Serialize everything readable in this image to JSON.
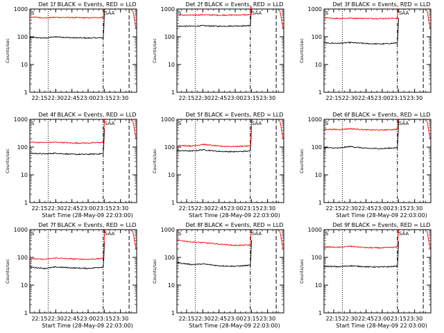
{
  "chart_data": [
    {
      "type": "line",
      "title": "Det 1f BLACK = Events, RED = LLD",
      "xlabel": "",
      "ylabel": "Counts/sec",
      "yscale": "log",
      "ylim": [
        1,
        1000
      ],
      "x_ticks": [
        "22:15",
        "22:30",
        "22:45",
        "23:00",
        "23:15",
        "23:30"
      ],
      "yticks": [
        "1",
        "10",
        "100",
        "1000"
      ],
      "markers": {
        "S": "23:14",
        "SAA": "23:20"
      },
      "series": [
        {
          "color": "#000000",
          "points": [
            [
              "22:06",
              95
            ],
            [
              "22:20",
              90
            ],
            [
              "22:30",
              100
            ],
            [
              "22:45",
              92
            ],
            [
              "23:00",
              90
            ],
            [
              "23:14",
              92
            ]
          ]
        },
        {
          "color": "#ff0000",
          "points": [
            [
              "22:06",
              520
            ],
            [
              "22:20",
              480
            ],
            [
              "22:30",
              500
            ],
            [
              "22:45",
              490
            ],
            [
              "23:00",
              480
            ],
            [
              "23:14",
              500
            ]
          ]
        }
      ]
    },
    {
      "type": "line",
      "title": "Det 2f BLACK = Events, RED = LLD",
      "xlabel": "",
      "ylabel": "Counts/sec",
      "yscale": "log",
      "ylim": [
        1,
        1000
      ],
      "x_ticks": [
        "22:15",
        "22:30",
        "22:45",
        "23:00",
        "23:15",
        "23:30"
      ],
      "yticks": [
        "1",
        "10",
        "100",
        "1000"
      ],
      "markers": {
        "S": "23:14",
        "SAA": "23:20"
      },
      "series": [
        {
          "color": "#000000",
          "points": [
            [
              "22:06",
              240
            ],
            [
              "22:20",
              240
            ],
            [
              "22:30",
              250
            ],
            [
              "22:45",
              240
            ],
            [
              "23:00",
              245
            ],
            [
              "23:14",
              250
            ]
          ]
        },
        {
          "color": "#ff0000",
          "points": [
            [
              "22:06",
              600
            ],
            [
              "22:20",
              600
            ],
            [
              "22:30",
              620
            ],
            [
              "22:45",
              600
            ],
            [
              "23:00",
              610
            ],
            [
              "23:14",
              620
            ]
          ]
        }
      ]
    },
    {
      "type": "line",
      "title": "Det 3f BLACK = Events, RED = LLD",
      "xlabel": "",
      "ylabel": "Counts/sec",
      "yscale": "log",
      "ylim": [
        1,
        1000
      ],
      "x_ticks": [
        "22:15",
        "22:30",
        "22:45",
        "23:00",
        "23:15",
        "23:30"
      ],
      "yticks": [
        "1",
        "10",
        "100",
        "1000"
      ],
      "markers": {
        "S": "23:14",
        "SAA": "23:20"
      },
      "series": [
        {
          "color": "#000000",
          "points": [
            [
              "22:06",
              60
            ],
            [
              "22:20",
              58
            ],
            [
              "22:30",
              62
            ],
            [
              "22:45",
              57
            ],
            [
              "23:00",
              55
            ],
            [
              "23:14",
              60
            ]
          ]
        },
        {
          "color": "#ff0000",
          "points": [
            [
              "22:06",
              470
            ],
            [
              "22:20",
              460
            ],
            [
              "22:30",
              470
            ],
            [
              "22:45",
              460
            ],
            [
              "23:00",
              455
            ],
            [
              "23:14",
              470
            ]
          ]
        }
      ]
    },
    {
      "type": "line",
      "title": "Det 4f BLACK = Events, RED = LLD",
      "xlabel": "Start Time (28-May-09 22:03:00)",
      "ylabel": "Counts/sec",
      "yscale": "log",
      "ylim": [
        1,
        1000
      ],
      "x_ticks": [
        "22:15",
        "22:30",
        "22:45",
        "23:00",
        "23:15",
        "23:30"
      ],
      "yticks": [
        "1",
        "10",
        "100",
        "1000"
      ],
      "markers": {
        "S": "23:14",
        "SAA": "23:20"
      },
      "series": [
        {
          "color": "#000000",
          "points": [
            [
              "22:06",
              60
            ],
            [
              "22:20",
              57
            ],
            [
              "22:30",
              60
            ],
            [
              "22:45",
              55
            ],
            [
              "23:00",
              55
            ],
            [
              "23:14",
              58
            ]
          ]
        },
        {
          "color": "#ff0000",
          "points": [
            [
              "22:06",
              150
            ],
            [
              "22:20",
              145
            ],
            [
              "22:30",
              150
            ],
            [
              "22:45",
              140
            ],
            [
              "23:00",
              140
            ],
            [
              "23:14",
              148
            ]
          ]
        }
      ]
    },
    {
      "type": "line",
      "title": "Det 5f BLACK = Events, RED = LLD",
      "xlabel": "Start Time (28-May-09 22:03:00)",
      "ylabel": "Counts/sec",
      "yscale": "log",
      "ylim": [
        1,
        1000
      ],
      "x_ticks": [
        "22:15",
        "22:30",
        "22:45",
        "23:00",
        "23:15",
        "23:30"
      ],
      "yticks": [
        "1",
        "10",
        "100",
        "1000"
      ],
      "markers": {
        "S": "23:14",
        "SAA": "23:20"
      },
      "series": [
        {
          "color": "#000000",
          "points": [
            [
              "22:06",
              75
            ],
            [
              "22:20",
              72
            ],
            [
              "22:30",
              80
            ],
            [
              "22:45",
              70
            ],
            [
              "23:00",
              68
            ],
            [
              "23:14",
              72
            ]
          ]
        },
        {
          "color": "#ff0000",
          "points": [
            [
              "22:06",
              115
            ],
            [
              "22:20",
              110
            ],
            [
              "22:30",
              125
            ],
            [
              "22:45",
              108
            ],
            [
              "23:00",
              105
            ],
            [
              "23:14",
              110
            ]
          ]
        }
      ]
    },
    {
      "type": "line",
      "title": "Det 6f BLACK = Events, RED = LLD",
      "xlabel": "Start Time (28-May-09 22:03:00)",
      "ylabel": "Counts/sec",
      "yscale": "log",
      "ylim": [
        1,
        1000
      ],
      "x_ticks": [
        "22:15",
        "22:30",
        "22:45",
        "23:00",
        "23:15",
        "23:30"
      ],
      "yticks": [
        "1",
        "10",
        "100",
        "1000"
      ],
      "markers": {
        "S": "23:14",
        "SAA": "23:20"
      },
      "series": [
        {
          "color": "#000000",
          "points": [
            [
              "22:06",
              95
            ],
            [
              "22:20",
              92
            ],
            [
              "22:30",
              105
            ],
            [
              "22:45",
              90
            ],
            [
              "23:00",
              88
            ],
            [
              "23:14",
              95
            ]
          ]
        },
        {
          "color": "#ff0000",
          "points": [
            [
              "22:06",
              440
            ],
            [
              "22:20",
              430
            ],
            [
              "22:30",
              460
            ],
            [
              "22:45",
              420
            ],
            [
              "23:00",
              410
            ],
            [
              "23:14",
              440
            ]
          ]
        }
      ]
    },
    {
      "type": "line",
      "title": "Det 7f BLACK = Events, RED = LLD",
      "xlabel": "Start Time (28-May-09 22:03:00)",
      "ylabel": "Counts/sec",
      "yscale": "log",
      "ylim": [
        1,
        1000
      ],
      "x_ticks": [
        "22:15",
        "22:30",
        "22:45",
        "23:00",
        "23:15",
        "23:30"
      ],
      "yticks": [
        "1",
        "10",
        "100",
        "1000"
      ],
      "markers": {
        "S": "23:14",
        "SAA": "23:20"
      },
      "series": [
        {
          "color": "#000000",
          "points": [
            [
              "22:06",
              45
            ],
            [
              "22:20",
              40
            ],
            [
              "22:30",
              45
            ],
            [
              "22:45",
              42
            ],
            [
              "23:00",
              40
            ],
            [
              "23:14",
              45
            ]
          ]
        },
        {
          "color": "#ff0000",
          "points": [
            [
              "22:06",
              90
            ],
            [
              "22:20",
              85
            ],
            [
              "22:30",
              95
            ],
            [
              "22:45",
              88
            ],
            [
              "23:00",
              85
            ],
            [
              "23:14",
              92
            ]
          ]
        }
      ]
    },
    {
      "type": "line",
      "title": "Det 8f BLACK = Events, RED = LLD",
      "xlabel": "Start Time (28-May-09 22:03:00)",
      "ylabel": "Counts/sec",
      "yscale": "log",
      "ylim": [
        1,
        1000
      ],
      "x_ticks": [
        "22:15",
        "22:30",
        "22:45",
        "23:00",
        "23:15",
        "23:30"
      ],
      "yticks": [
        "1",
        "10",
        "100",
        "1000"
      ],
      "markers": {
        "S": "23:14",
        "SAA": "23:20"
      },
      "series": [
        {
          "color": "#000000",
          "points": [
            [
              "22:06",
              65
            ],
            [
              "22:20",
              55
            ],
            [
              "22:30",
              58
            ],
            [
              "22:45",
              50
            ],
            [
              "23:00",
              48
            ],
            [
              "23:14",
              52
            ]
          ]
        },
        {
          "color": "#ff0000",
          "points": [
            [
              "22:06",
              420
            ],
            [
              "22:20",
              360
            ],
            [
              "22:30",
              340
            ],
            [
              "22:45",
              300
            ],
            [
              "23:00",
              270
            ],
            [
              "23:14",
              280
            ]
          ]
        }
      ]
    },
    {
      "type": "line",
      "title": "Det 9f BLACK = Events, RED = LLD",
      "xlabel": "Start Time (28-May-09 22:03:00)",
      "ylabel": "Counts/sec",
      "yscale": "log",
      "ylim": [
        1,
        1000
      ],
      "x_ticks": [
        "22:15",
        "22:30",
        "22:45",
        "23:00",
        "23:15",
        "23:30"
      ],
      "yticks": [
        "1",
        "10",
        "100",
        "1000"
      ],
      "markers": {
        "S": "23:14",
        "SAA": "23:20"
      },
      "series": [
        {
          "color": "#000000",
          "points": [
            [
              "22:06",
              48
            ],
            [
              "22:20",
              46
            ],
            [
              "22:30",
              50
            ],
            [
              "22:45",
              46
            ],
            [
              "23:00",
              45
            ],
            [
              "23:14",
              48
            ]
          ]
        },
        {
          "color": "#ff0000",
          "points": [
            [
              "22:06",
              240
            ],
            [
              "22:20",
              230
            ],
            [
              "22:30",
              250
            ],
            [
              "22:45",
              225
            ],
            [
              "23:00",
              220
            ],
            [
              "23:14",
              235
            ]
          ]
        }
      ]
    }
  ]
}
